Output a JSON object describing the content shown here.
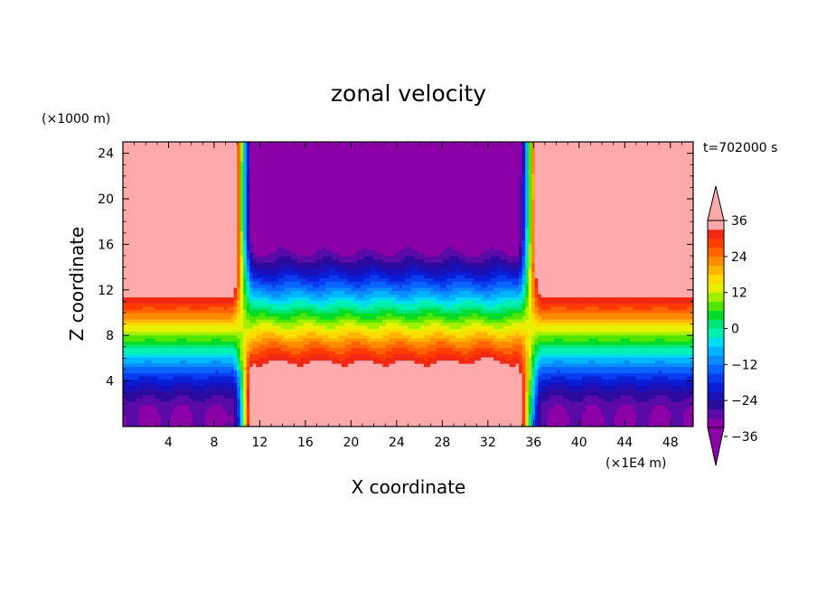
{
  "chart_data": {
    "type": "heatmap",
    "title": "zonal velocity",
    "xlabel": "X coordinate",
    "ylabel": "Z coordinate",
    "x_unit_label": "(×1E4 m)",
    "y_unit_label": "(×1000 m)",
    "time_label": "t=702000 s",
    "xlim": [
      0,
      50
    ],
    "ylim": [
      0,
      25
    ],
    "x_ticks": [
      4,
      8,
      12,
      16,
      20,
      24,
      28,
      32,
      36,
      40,
      44,
      48
    ],
    "y_ticks": [
      4,
      8,
      12,
      16,
      20,
      24
    ],
    "x_tick_labels": [
      "4",
      "8",
      "12",
      "16",
      "20",
      "24",
      "28",
      "32",
      "36",
      "40",
      "44",
      "48"
    ],
    "y_tick_labels": [
      "4",
      "8",
      "12",
      "16",
      "20",
      "24"
    ],
    "colorbar": {
      "levels": [
        -42,
        -39,
        -36,
        -33,
        -30,
        -27,
        -24,
        -21,
        -18,
        -15,
        -12,
        -9,
        -6,
        -3,
        0,
        3,
        6,
        9,
        12,
        15,
        18,
        21,
        24,
        27,
        30,
        33,
        36,
        39
      ],
      "tick_values": [
        36,
        24,
        12,
        0,
        -12,
        -24,
        -36
      ],
      "tick_labels": [
        "36",
        "24",
        "12",
        "0",
        "−12",
        "−24",
        "−36"
      ],
      "colors": [
        "#8c00a8",
        "#5a0aa6",
        "#2d0a9e",
        "#1a10b8",
        "#0a1ed6",
        "#0a3cf0",
        "#0a64ff",
        "#0a8cff",
        "#00b4ff",
        "#00dcf0",
        "#00f0b4",
        "#00e678",
        "#00dc28",
        "#50e600",
        "#a0f000",
        "#e6f000",
        "#ffdc00",
        "#ffb400",
        "#ff8c00",
        "#ff6400",
        "#ff3c00",
        "#f02814",
        "#ffaaaa"
      ],
      "over_color": "#ffaaaa",
      "under_color": "#8c00a8"
    },
    "field_description": "Zonal wind velocity vs X (0-50 x1E4 m) and Z (0-25 x1000 m). Strong westerly (~36, red) above 8 km for X<10 and X>37; easterly (~-36 to -42, purple) aloft between X=12 and X=34; shear reversal near surface."
  }
}
